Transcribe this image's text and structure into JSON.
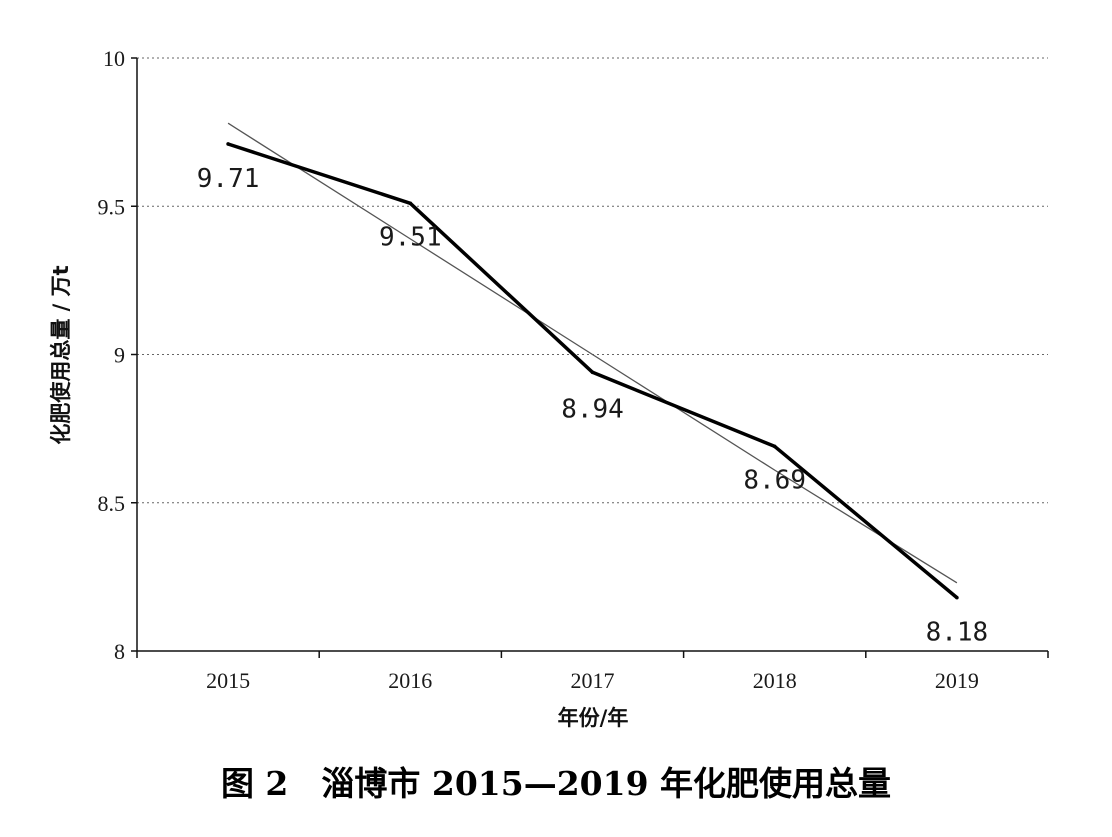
{
  "figure": {
    "caption": "图 2　淄博市 2015—2019 年化肥使用总量"
  },
  "chart_data": {
    "type": "line",
    "x": [
      "2015",
      "2016",
      "2017",
      "2018",
      "2019"
    ],
    "series": [
      {
        "values": [
          9.71,
          9.51,
          8.94,
          8.69,
          8.18
        ],
        "data_labels": [
          "9.71",
          "9.51",
          "8.94",
          "8.69",
          "8.18"
        ],
        "color": "#000000",
        "style": "solid-thick"
      },
      {
        "kind": "linear-trendline",
        "values": [
          9.78,
          9.39,
          9.0,
          8.61,
          8.23
        ],
        "color": "#555555",
        "style": "solid-thin"
      }
    ],
    "xlabel": "年份/年",
    "ylabel": "化肥使用总量 / 万t",
    "ylim": [
      8,
      10
    ],
    "yticks": [
      8,
      8.5,
      9,
      9.5,
      10
    ],
    "ytick_labels": [
      "8",
      "8.5",
      "9",
      "9.5",
      "10"
    ],
    "grid": "horizontal-dotted"
  }
}
